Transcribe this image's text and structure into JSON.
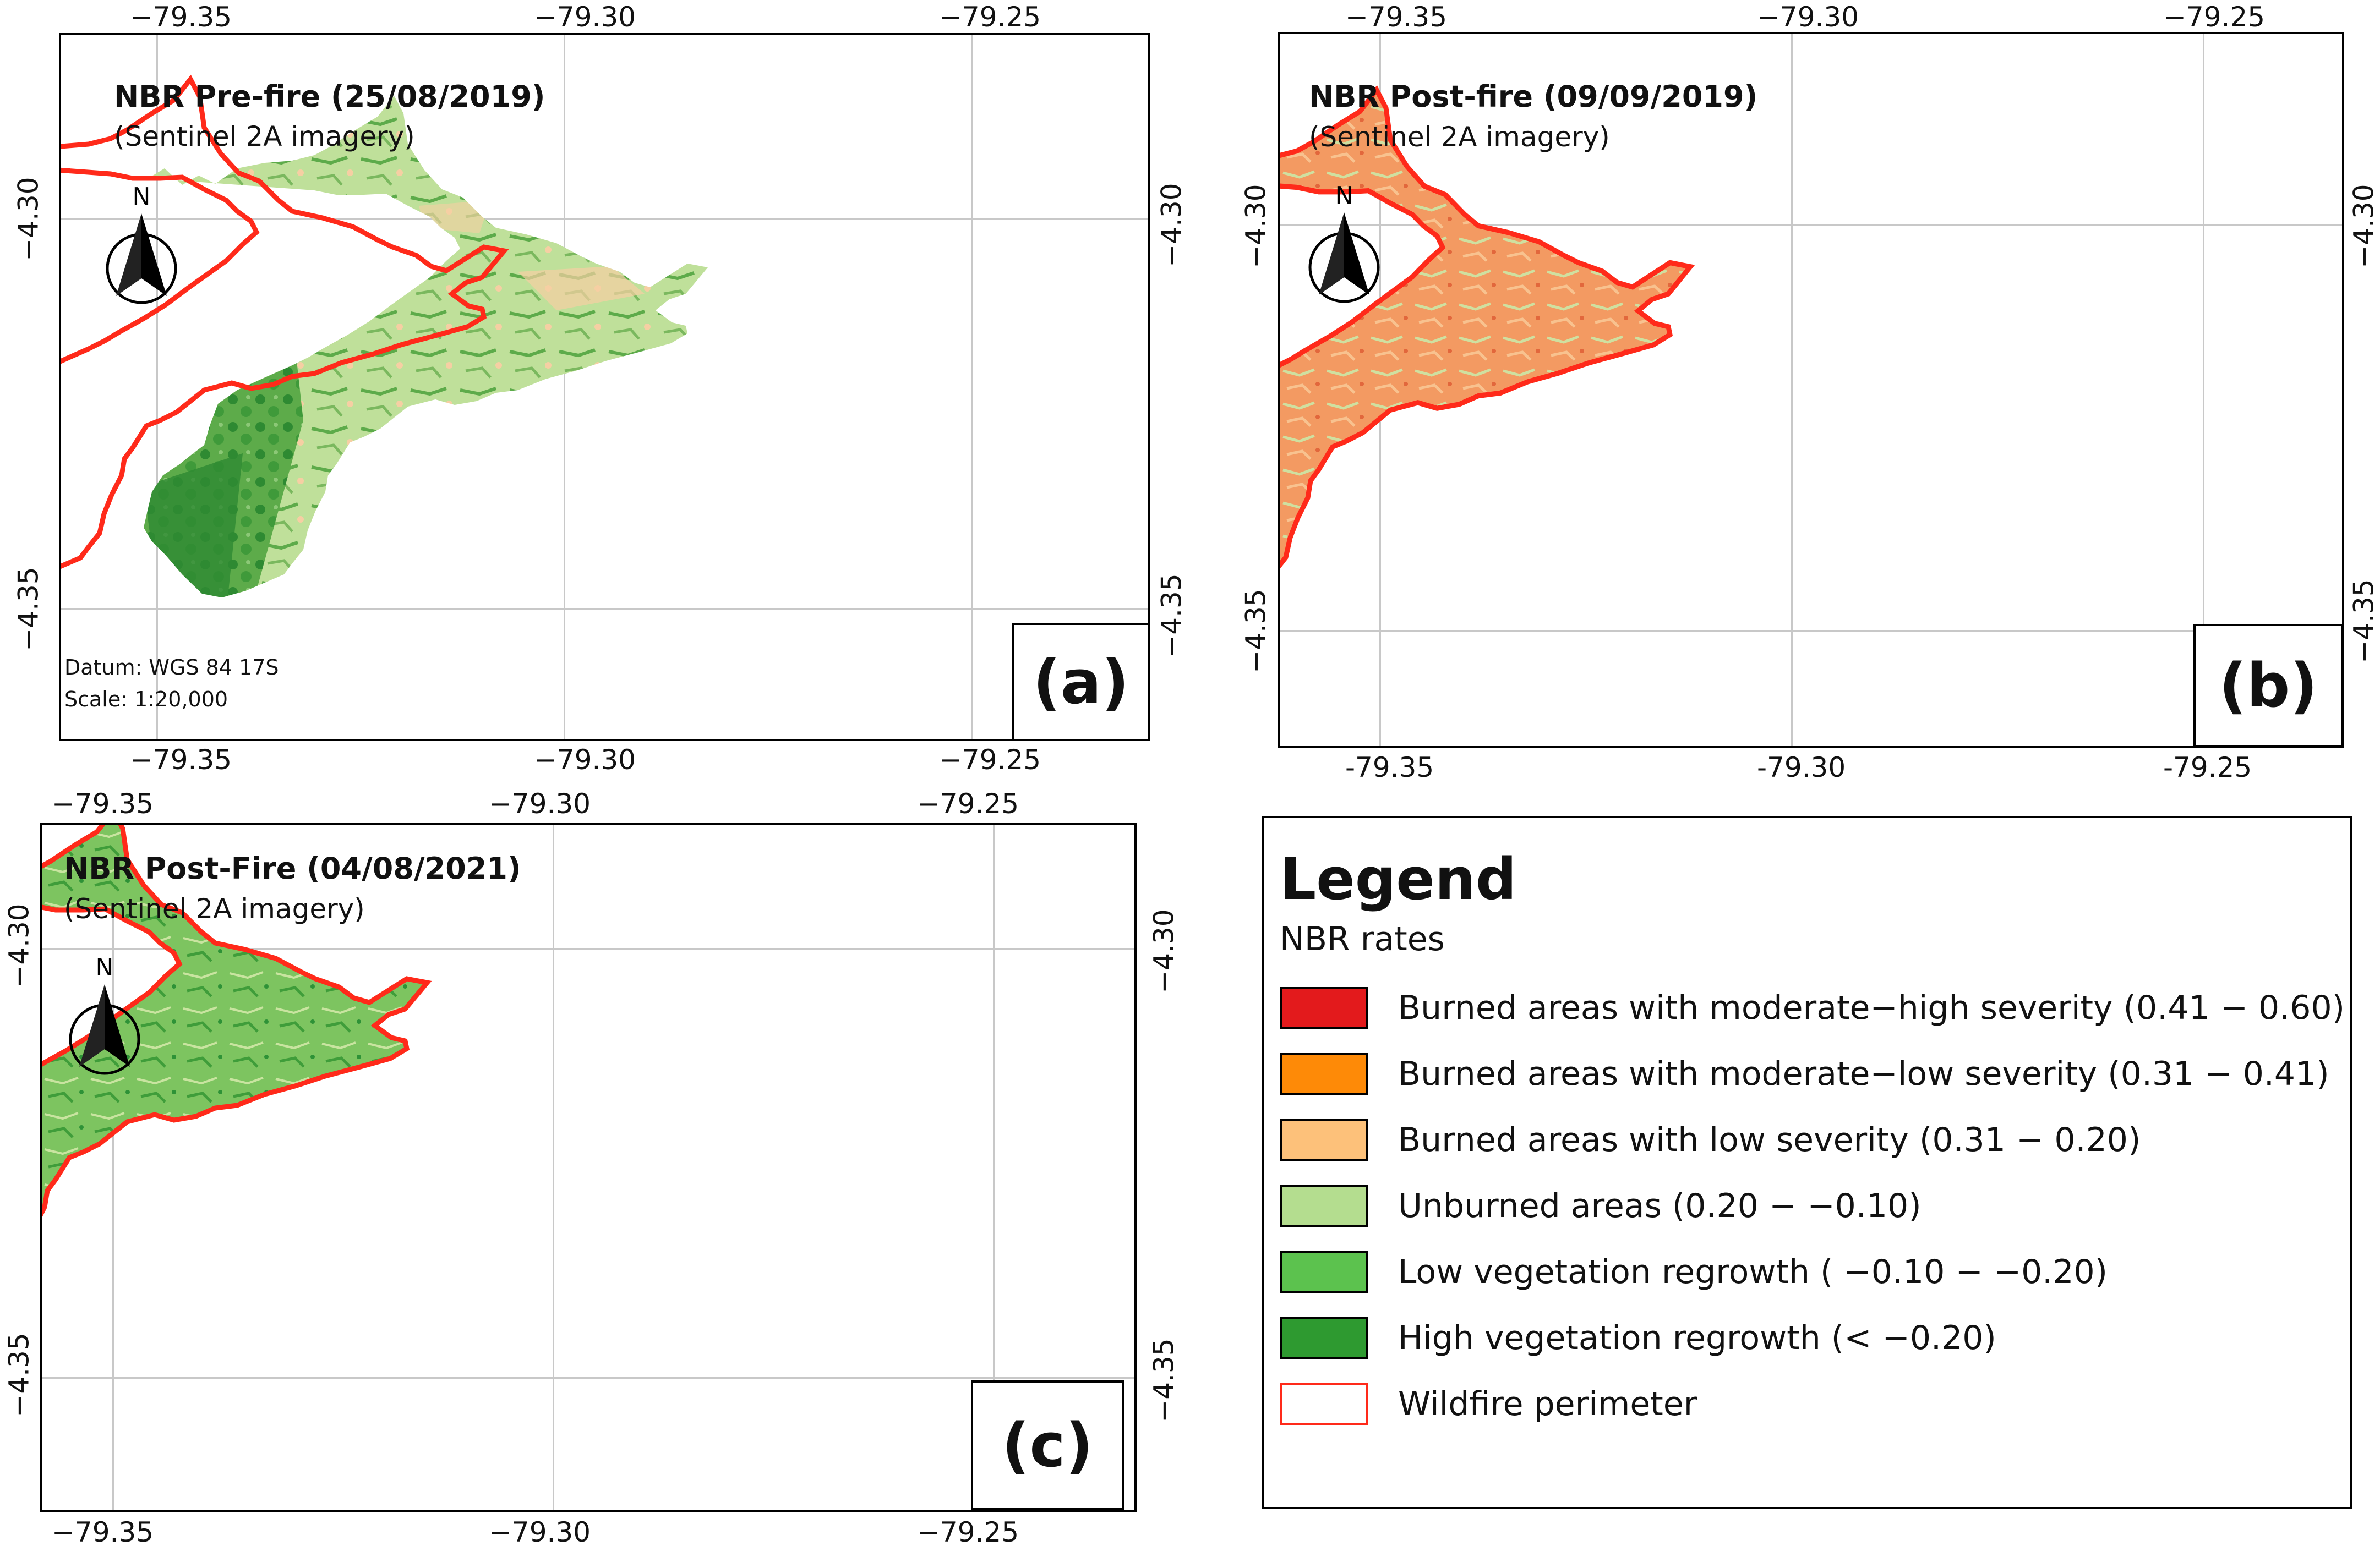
{
  "panels": {
    "a": {
      "title": "NBR Pre-fire (25/08/2019)",
      "subtitle": "(Sentinel 2A imagery)",
      "letter": "(a)",
      "datum": "Datum: WGS 84 17S",
      "scale": "Scale: 1:20,000",
      "fill": "pre"
    },
    "b": {
      "title": "NBR Post-fire (09/09/2019)",
      "subtitle": "(Sentinel 2A imagery)",
      "letter": "(b)",
      "fill": "post2019"
    },
    "c": {
      "title": "NBR Post-Fire (04/08/2021)",
      "subtitle": "(Sentinel 2A imagery)",
      "letter": "(c)",
      "fill": "post2021"
    }
  },
  "axes": {
    "lon_ticks": [
      "−79.35",
      "−79.30",
      "−79.25"
    ],
    "lon_ticks_b_bottom": [
      "-79.35",
      "-79.30",
      "-79.25"
    ],
    "lat_ticks": [
      "−4.30",
      "−4.35"
    ],
    "north_label": "N"
  },
  "legend": {
    "title": "Legend",
    "subtitle": "NBR rates",
    "items": [
      {
        "label": "Burned areas with moderate−high severity (0.41 − 0.60)",
        "color": "#e31a1c",
        "kind": "fill"
      },
      {
        "label": "Burned areas with moderate−low severity (0.31 − 0.41)",
        "color": "#fe8a07",
        "kind": "fill"
      },
      {
        "label": "Burned areas with low severity (0.31 − 0.20)",
        "color": "#fdc17a",
        "kind": "fill"
      },
      {
        "label": "Unburned areas (0.20 − −0.10)",
        "color": "#b4dd8f",
        "kind": "fill"
      },
      {
        "label": "Low vegetation regrowth ( −0.10 − −0.20)",
        "color": "#5cc24e",
        "kind": "fill"
      },
      {
        "label": "High vegetation regrowth  (< −0.20)",
        "color": "#2e9a30",
        "kind": "fill"
      },
      {
        "label": "Wildfire perimeter",
        "color": "#ff2a1a",
        "kind": "outline"
      }
    ]
  },
  "colors": {
    "perimeter": "#ff2a1a",
    "pre_main": "#bfe09a",
    "pre_green": "#5dab4a",
    "pre_dark": "#2e8a32",
    "pre_peach": "#f6cfa3",
    "post2019_main": "#f39a62",
    "post2019_light": "#cfe0a0",
    "post2019_red": "#d8322a",
    "post2019_green": "#3e9c3c",
    "post2021_main": "#7dc460",
    "post2021_light": "#c9e4a0",
    "post2021_dark": "#2e9237"
  }
}
